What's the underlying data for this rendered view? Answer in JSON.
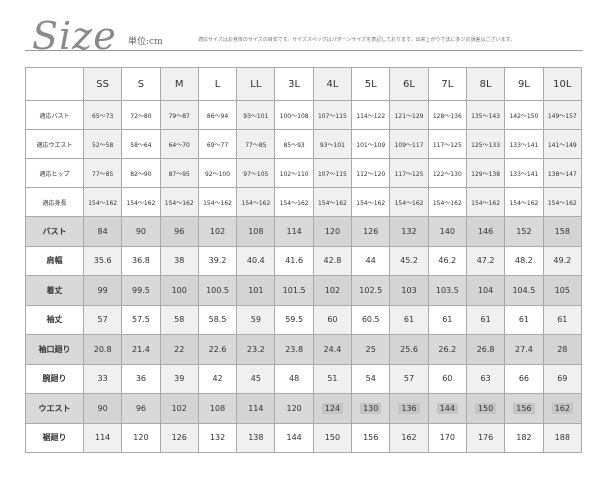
{
  "header": {
    "logo": "Size",
    "unit": "単位:cm",
    "note": "適応サイズはお身体のサイズの目安です。サイズスペックはパターンサイズを表記しております。出来上がり寸法に多少の誤差はございます。"
  },
  "table": {
    "sizes": [
      "SS",
      "S",
      "M",
      "L",
      "LL",
      "3L",
      "4L",
      "5L",
      "6L",
      "7L",
      "8L",
      "9L",
      "10L"
    ],
    "fit_rows": [
      {
        "label": "適応バスト",
        "values": [
          "65～73",
          "72～80",
          "79～87",
          "86～94",
          "93～101",
          "100～108",
          "107～115",
          "114～122",
          "121～129",
          "128～136",
          "135～143",
          "142～150",
          "149～157"
        ]
      },
      {
        "label": "適応ウエスト",
        "values": [
          "52～58",
          "58～64",
          "64～70",
          "69～77",
          "77～85",
          "85～93",
          "93～101",
          "101～109",
          "109～117",
          "117～125",
          "125～133",
          "133～141",
          "141～149"
        ]
      },
      {
        "label": "適応ヒップ",
        "values": [
          "77～85",
          "82～90",
          "87～95",
          "92～100",
          "97～105",
          "102～110",
          "107～115",
          "112～120",
          "117～125",
          "122～130",
          "129～138",
          "133～141",
          "138～147"
        ]
      },
      {
        "label": "適応身長",
        "values": [
          "154～162",
          "154～162",
          "154～162",
          "154～162",
          "154～162",
          "154～162",
          "154～162",
          "154～162",
          "154～162",
          "154～162",
          "154～162",
          "154～162",
          "154～162"
        ]
      }
    ],
    "spec_rows": [
      {
        "label": "バスト",
        "shaded": true,
        "values": [
          "84",
          "90",
          "96",
          "102",
          "108",
          "114",
          "120",
          "126",
          "132",
          "140",
          "146",
          "152",
          "158"
        ]
      },
      {
        "label": "肩幅",
        "shaded": false,
        "values": [
          "35.6",
          "36.8",
          "38",
          "39.2",
          "40.4",
          "41.6",
          "42.8",
          "44",
          "45.2",
          "46.2",
          "47.2",
          "48.2",
          "49.2"
        ]
      },
      {
        "label": "着丈",
        "shaded": true,
        "values": [
          "99",
          "99.5",
          "100",
          "100.5",
          "101",
          "101.5",
          "102",
          "102.5",
          "103",
          "103.5",
          "104",
          "104.5",
          "105"
        ]
      },
      {
        "label": "袖丈",
        "shaded": false,
        "values": [
          "57",
          "57.5",
          "58",
          "58.5",
          "59",
          "59.5",
          "60",
          "60.5",
          "61",
          "61",
          "61",
          "61",
          "61"
        ]
      },
      {
        "label": "袖口廻り",
        "shaded": true,
        "values": [
          "20.8",
          "21.4",
          "22",
          "22.6",
          "23.2",
          "23.8",
          "24.4",
          "25",
          "25.6",
          "26.2",
          "26.8",
          "27.4",
          "28"
        ]
      },
      {
        "label": "腕廻り",
        "shaded": false,
        "values": [
          "33",
          "36",
          "39",
          "42",
          "45",
          "48",
          "51",
          "54",
          "57",
          "60",
          "63",
          "66",
          "69"
        ]
      },
      {
        "label": "ウエスト",
        "shaded": true,
        "highlight_from": 6,
        "values": [
          "90",
          "96",
          "102",
          "108",
          "114",
          "120",
          "124",
          "130",
          "136",
          "144",
          "150",
          "156",
          "162"
        ]
      },
      {
        "label": "裾廻り",
        "shaded": false,
        "values": [
          "114",
          "120",
          "126",
          "132",
          "138",
          "144",
          "150",
          "156",
          "162",
          "170",
          "176",
          "182",
          "188"
        ]
      }
    ]
  }
}
